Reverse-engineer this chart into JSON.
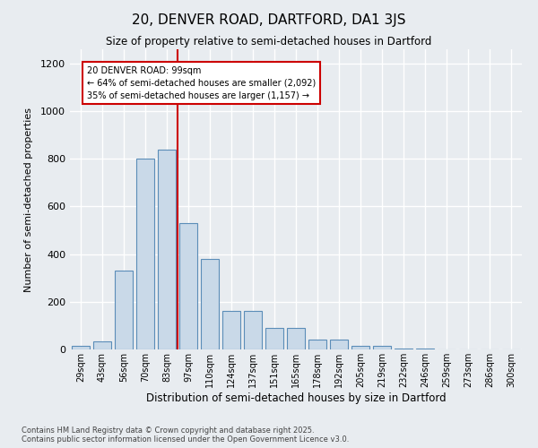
{
  "title": "20, DENVER ROAD, DARTFORD, DA1 3JS",
  "subtitle": "Size of property relative to semi-detached houses in Dartford",
  "xlabel": "Distribution of semi-detached houses by size in Dartford",
  "ylabel": "Number of semi-detached properties",
  "annotation_text_line1": "20 DENVER ROAD: 99sqm",
  "annotation_text_line2": "← 64% of semi-detached houses are smaller (2,092)",
  "annotation_text_line3": "35% of semi-detached houses are larger (1,157) →",
  "footnote1": "Contains HM Land Registry data © Crown copyright and database right 2025.",
  "footnote2": "Contains public sector information licensed under the Open Government Licence v3.0.",
  "bar_color": "#c9d9e8",
  "bar_edge_color": "#5b8db8",
  "redline_color": "#cc0000",
  "background_color": "#e8ecf0",
  "categories": [
    "29sqm",
    "43sqm",
    "56sqm",
    "70sqm",
    "83sqm",
    "97sqm",
    "110sqm",
    "124sqm",
    "137sqm",
    "151sqm",
    "165sqm",
    "178sqm",
    "192sqm",
    "205sqm",
    "219sqm",
    "232sqm",
    "246sqm",
    "259sqm",
    "273sqm",
    "286sqm",
    "300sqm"
  ],
  "values": [
    15,
    35,
    330,
    800,
    840,
    530,
    380,
    160,
    160,
    90,
    90,
    40,
    40,
    15,
    15,
    5,
    5,
    0,
    0,
    0,
    0
  ],
  "ylim_max": 1260,
  "yticks": [
    0,
    200,
    400,
    600,
    800,
    1000,
    1200
  ],
  "redline_bar_index": 5
}
